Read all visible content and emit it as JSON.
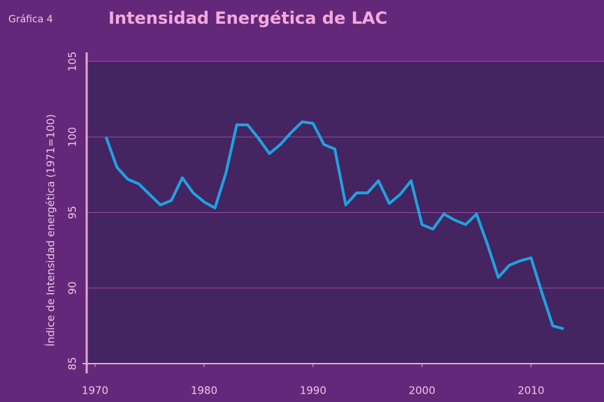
{
  "chart_data": {
    "type": "line",
    "label": "Gráfica 4",
    "title": "Intensidad Energética de LAC",
    "y_label": "Índice de Intensidad energética (1971=100)",
    "x": [
      1971,
      1972,
      1973,
      1974,
      1975,
      1976,
      1977,
      1978,
      1979,
      1980,
      1981,
      1982,
      1983,
      1984,
      1985,
      1986,
      1987,
      1988,
      1989,
      1990,
      1991,
      1992,
      1993,
      1994,
      1995,
      1996,
      1997,
      1998,
      1999,
      2000,
      2001,
      2002,
      2003,
      2004,
      2005,
      2006,
      2007,
      2008,
      2009,
      2010,
      2011,
      2012,
      2013
    ],
    "series": [
      {
        "color": "#1fa2e0",
        "values": [
          100,
          98.0,
          97.2,
          96.9,
          96.2,
          95.5,
          95.8,
          97.3,
          96.3,
          95.7,
          95.3,
          97.6,
          100.8,
          100.8,
          99.9,
          98.9,
          99.5,
          100.3,
          101.0,
          100.9,
          99.5,
          99.2,
          95.5,
          96.3,
          96.3,
          97.1,
          95.6,
          96.2,
          97.1,
          94.2,
          93.9,
          94.9,
          94.5,
          94.2,
          94.9,
          92.9,
          90.7,
          91.5,
          91.8,
          92.0,
          89.7,
          87.5,
          87.3
        ]
      }
    ],
    "xlim": [
      1969.1,
      2016.7
    ],
    "xticks": [
      1970,
      1980,
      1990,
      2000,
      2010
    ],
    "ylim": [
      85,
      105
    ],
    "yticks": [
      85,
      90,
      95,
      100,
      105
    ],
    "grid": true
  }
}
